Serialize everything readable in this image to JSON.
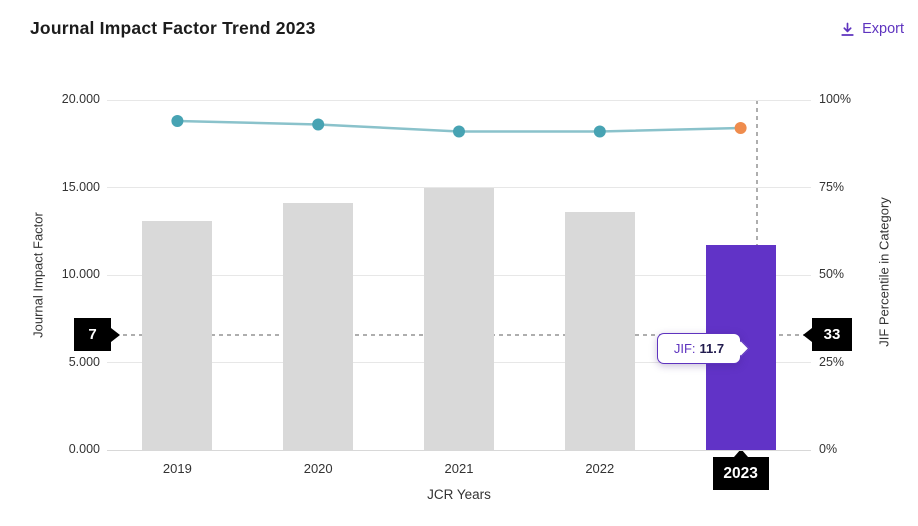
{
  "header": {
    "title": "Journal Impact Factor Trend 2023",
    "export_label": "Export"
  },
  "colors": {
    "accent_purple": "#5e33bf",
    "bar_gray": "#d9d9d9",
    "bar_highlight": "#6133c7",
    "line_teal": "#8ac2cb",
    "marker_teal": "#47a3b3",
    "marker_orange": "#ef8c4d",
    "badge_black": "#000000"
  },
  "chart_data": {
    "type": "combo-bar-line",
    "categories": [
      "2019",
      "2020",
      "2021",
      "2022",
      "2023"
    ],
    "series": [
      {
        "name": "Journal Impact Factor",
        "type": "bar",
        "axis": "left",
        "values": [
          13.1,
          14.1,
          15.0,
          13.6,
          11.7
        ]
      },
      {
        "name": "JIF Percentile in Category",
        "type": "line",
        "axis": "right",
        "values": [
          94,
          93,
          91,
          91,
          92
        ]
      }
    ],
    "highlight_year": "2023",
    "left_axis": {
      "title": "Journal Impact Factor",
      "ticks": [
        "0.000",
        "5.000",
        "10.000",
        "15.000",
        "20.000"
      ],
      "min": 0,
      "max": 20
    },
    "right_axis": {
      "title": "JIF Percentile in Category",
      "ticks": [
        "0%",
        "25%",
        "50%",
        "75%",
        "100%"
      ],
      "min": 0,
      "max": 100
    },
    "xlabel": "JCR Years",
    "grid": "horizontal gridlines at each tick",
    "legend": "none",
    "tooltip": {
      "label": "JIF:",
      "value": "11.7"
    },
    "crosshair": {
      "left_badge": "7",
      "right_badge": "33",
      "x_badge": "2023",
      "right_axis_value": 33,
      "x_frac": 0.923
    }
  }
}
